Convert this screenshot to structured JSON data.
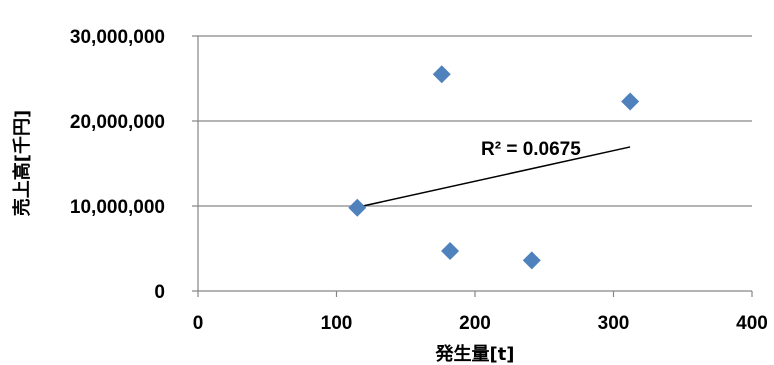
{
  "chart_data": {
    "type": "scatter",
    "title": "",
    "xlabel": "発生量[t]",
    "ylabel": "売上高[千円]",
    "xlim": [
      0,
      400
    ],
    "ylim": [
      0,
      30000000
    ],
    "x_ticks": [
      0,
      100,
      200,
      300,
      400
    ],
    "x_tick_labels": [
      "0",
      "100",
      "200",
      "300",
      "400"
    ],
    "y_ticks": [
      0,
      10000000,
      20000000,
      30000000
    ],
    "y_tick_labels": [
      "0",
      "10,000,000",
      "20,000,000",
      "30,000,000"
    ],
    "grid": "horizontal",
    "legend": "none",
    "series": [
      {
        "marker": "diamond",
        "color": "#4f81bd",
        "points": [
          {
            "x": 115,
            "y": 9800000
          },
          {
            "x": 176,
            "y": 25500000
          },
          {
            "x": 182,
            "y": 4700000
          },
          {
            "x": 241,
            "y": 3600000
          },
          {
            "x": 312,
            "y": 22300000
          }
        ]
      }
    ],
    "trendline": {
      "type": "linear",
      "color": "#000000",
      "start": {
        "x": 115,
        "y": 9850000
      },
      "end": {
        "x": 312,
        "y": 16950000
      },
      "r_squared_label": "R² = 0.0675"
    }
  }
}
